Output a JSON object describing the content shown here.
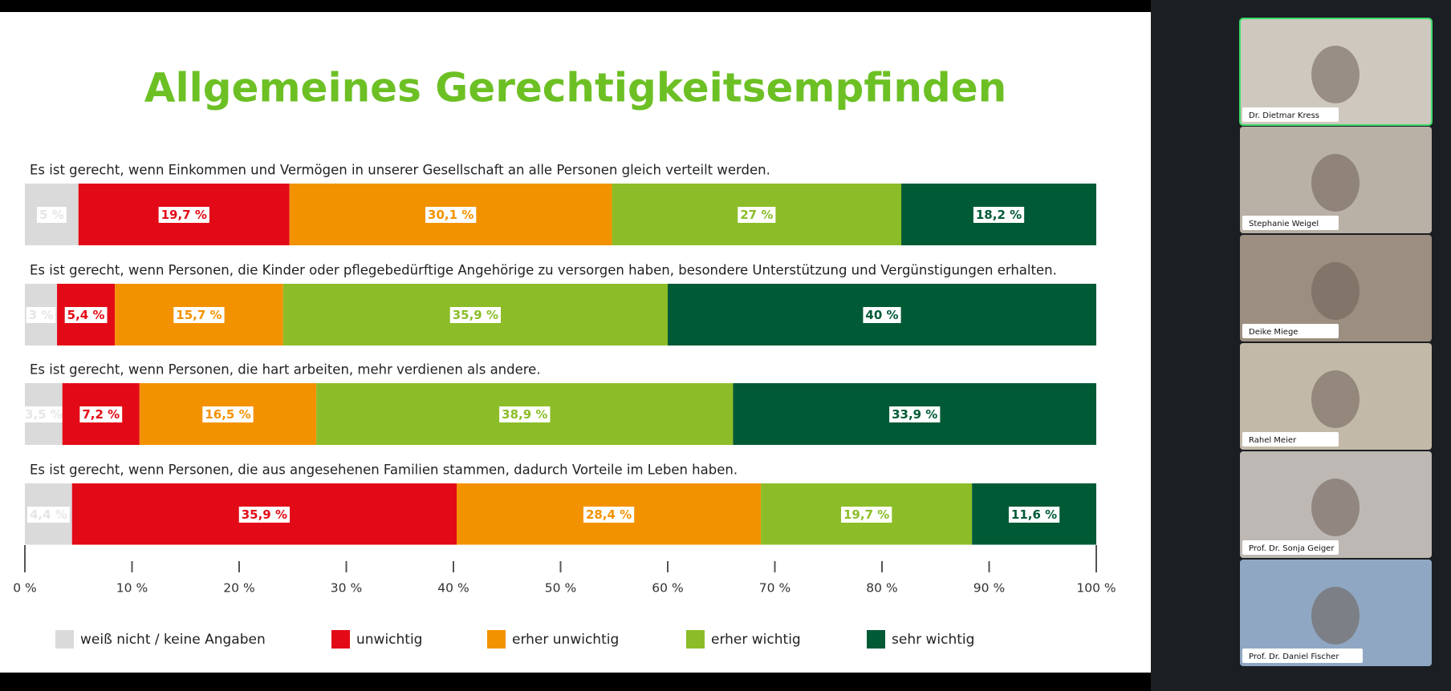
{
  "chart_data": {
    "type": "stacked-bar-horizontal",
    "title": "Allgemeines Gerechtigkeitsempfinden",
    "categories": [
      "Es ist gerecht, wenn Einkommen und Vermögen in unserer Gesellschaft an alle Personen gleich verteilt werden.",
      "Es ist gerecht, wenn Personen, die Kinder oder pflegebedürftige Angehörige zu versorgen haben, besondere Unterstützung und Vergünstigungen erhalten.",
      "Es ist gerecht, wenn Personen, die hart arbeiten, mehr verdienen als andere.",
      "Es ist gerecht, wenn Personen, die aus angesehenen Familien stammen, dadurch Vorteile im Leben haben."
    ],
    "series": [
      {
        "name": "weiß nicht / keine Angaben",
        "color": "#dadada",
        "values": [
          5,
          3,
          3.5,
          4.4
        ],
        "value_labels": [
          "5 %",
          "3 %",
          "3,5 %",
          "4,4 %"
        ]
      },
      {
        "name": "unwichtig",
        "color": "#e30a17",
        "values": [
          19.7,
          5.4,
          7.2,
          35.9
        ],
        "value_labels": [
          "19,7 %",
          "5,4 %",
          "7,2 %",
          "35,9 %"
        ]
      },
      {
        "name": "erher unwichtig",
        "color": "#f39200",
        "values": [
          30.1,
          15.7,
          16.5,
          28.4
        ],
        "value_labels": [
          "30,1 %",
          "15,7 %",
          "16,5 %",
          "28,4 %"
        ]
      },
      {
        "name": "erher wichtig",
        "color": "#8cbd28",
        "values": [
          27,
          35.9,
          38.9,
          19.7
        ],
        "value_labels": [
          "27 %",
          "35,9 %",
          "38,9 %",
          "19,7 %"
        ]
      },
      {
        "name": "sehr wichtig",
        "color": "#005a36",
        "values": [
          18.2,
          40,
          33.9,
          11.6
        ],
        "value_labels": [
          "18,2 %",
          "40 %",
          "33,9 %",
          "11,6 %"
        ]
      }
    ],
    "xlim": [
      0,
      100
    ],
    "xticks": [
      {
        "value": 0,
        "label": "0 %"
      },
      {
        "value": 10,
        "label": "10 %"
      },
      {
        "value": 20,
        "label": "20 %"
      },
      {
        "value": 30,
        "label": "30 %"
      },
      {
        "value": 40,
        "label": "40 %"
      },
      {
        "value": 50,
        "label": "50 %"
      },
      {
        "value": 60,
        "label": "60 %"
      },
      {
        "value": 70,
        "label": "70 %"
      },
      {
        "value": 80,
        "label": "80 %"
      },
      {
        "value": 90,
        "label": "90 %"
      },
      {
        "value": 100,
        "label": "100 %"
      }
    ],
    "legend": "bottom"
  },
  "participants": [
    "Dr. Dietmar Kress",
    "Stephanie Weigel",
    "Deike Miege",
    "Rahel Meier",
    "Prof. Dr. Sonja Geiger",
    "Prof. Dr. Daniel Fischer"
  ]
}
